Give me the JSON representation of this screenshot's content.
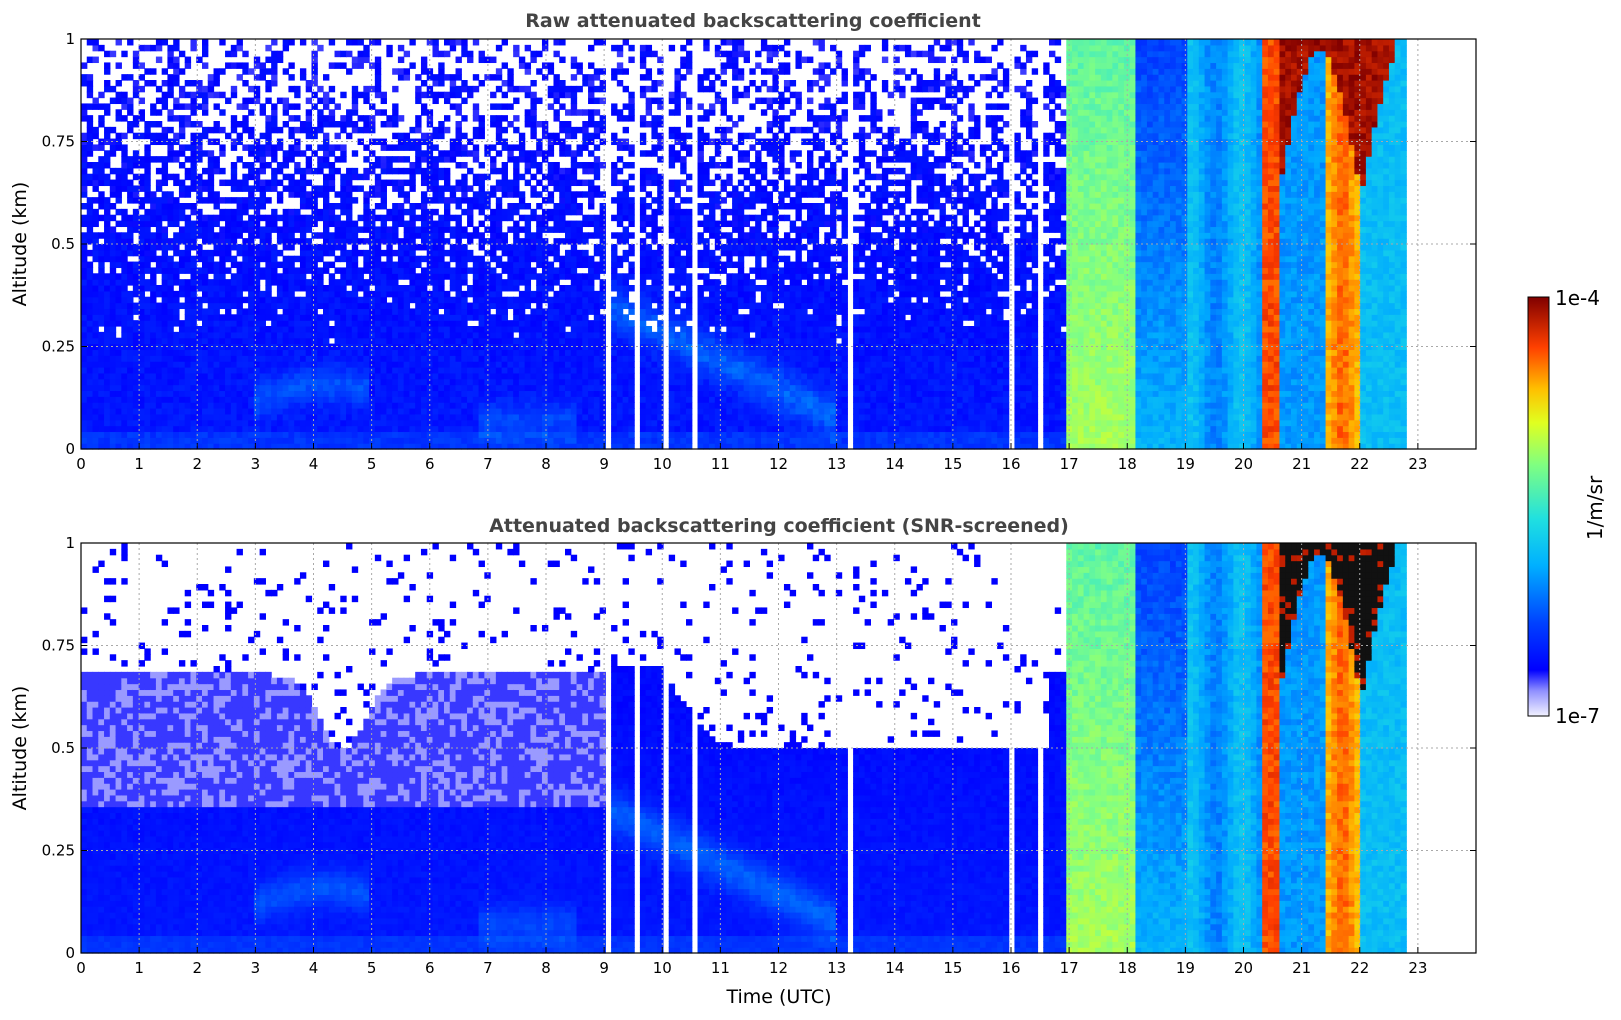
{
  "chart_data": [
    {
      "type": "heatmap",
      "title": "Raw attenuated backscattering coefficient",
      "xlabel": "",
      "ylabel": "Altitude (km)",
      "xlim": [
        0,
        24
      ],
      "ylim": [
        0,
        1
      ],
      "x_ticks": [
        "0",
        "1",
        "2",
        "3",
        "4",
        "5",
        "6",
        "7",
        "8",
        "9",
        "10",
        "11",
        "12",
        "13",
        "14",
        "15",
        "16",
        "17",
        "18",
        "19",
        "20",
        "21",
        "22",
        "23"
      ],
      "y_ticks": [
        "0",
        "0.25",
        "0.5",
        "0.75",
        "1"
      ],
      "grid": true,
      "screened": false,
      "data_end_hour": 22.8,
      "colorscale": "jet",
      "scale": "log"
    },
    {
      "type": "heatmap",
      "title": "Attenuated backscattering coefficient (SNR-screened)",
      "xlabel": "Time (UTC)",
      "ylabel": "Altitude (km)",
      "xlim": [
        0,
        24
      ],
      "ylim": [
        0,
        1
      ],
      "x_ticks": [
        "0",
        "1",
        "2",
        "3",
        "4",
        "5",
        "6",
        "7",
        "8",
        "9",
        "10",
        "11",
        "12",
        "13",
        "14",
        "15",
        "16",
        "17",
        "18",
        "19",
        "20",
        "21",
        "22",
        "23"
      ],
      "y_ticks": [
        "0",
        "0.25",
        "0.5",
        "0.75",
        "1"
      ],
      "grid": true,
      "screened": true,
      "data_end_hour": 22.8,
      "colorscale": "jet",
      "scale": "log"
    }
  ],
  "colorbar": {
    "label": "1/m/sr",
    "max_label": "1e-4",
    "min_label": "1e-7",
    "min": 1e-07,
    "max": 0.0001,
    "scale": "log"
  }
}
